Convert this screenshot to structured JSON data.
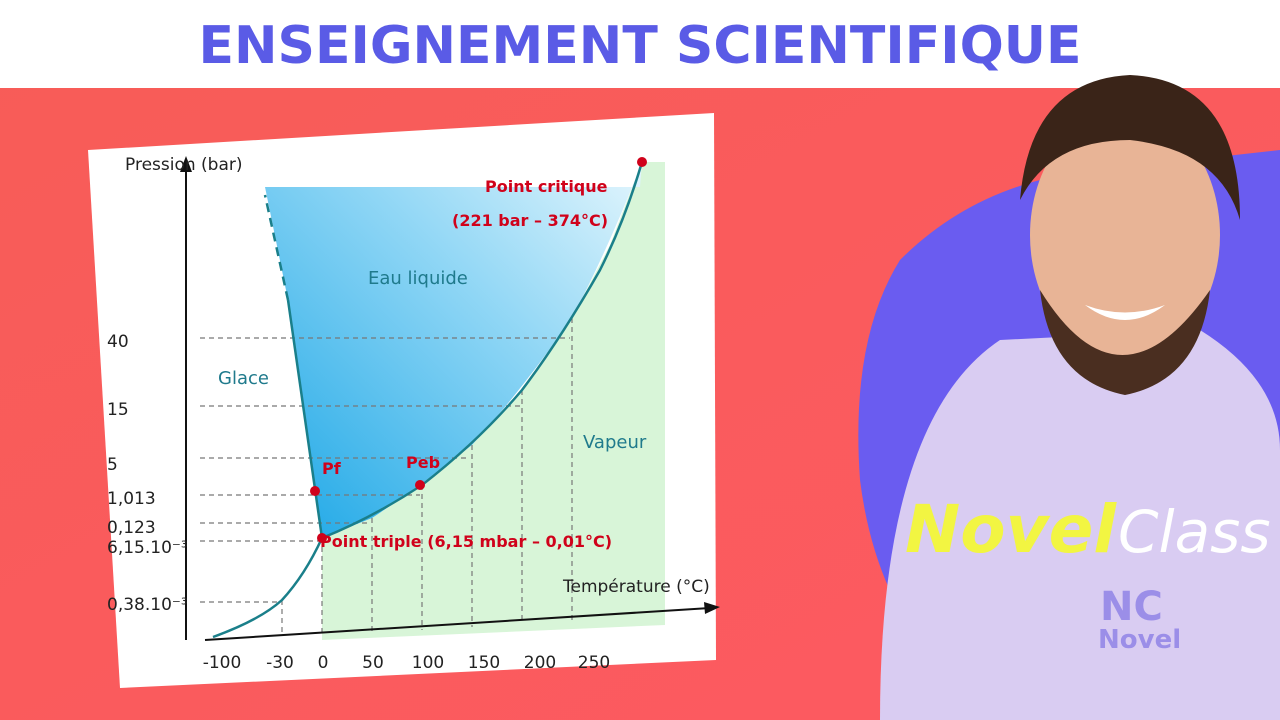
{
  "header": {
    "title": "ENSEIGNEMENT SCIENTIFIQUE"
  },
  "diagram": {
    "y_axis_label": "Pression (bar)",
    "x_axis_label": "Température (°C)",
    "y_ticks": [
      "40",
      "15",
      "5",
      "1,013",
      "0,123",
      "6,15.10⁻³",
      "0,38.10⁻³"
    ],
    "x_ticks": [
      "-100",
      "-30",
      "0",
      "50",
      "100",
      "150",
      "200",
      "250"
    ],
    "regions": {
      "solid": "Glace",
      "liquid": "Eau liquide",
      "gas": "Vapeur"
    },
    "points": {
      "fusion": "Pf",
      "boiling": "Peb",
      "triple": "Point triple (6,15 mbar – 0,01°C)",
      "critical": "Point critique",
      "critical_values": "(221 bar – 374°C)"
    }
  },
  "brand": {
    "word1": "Novel",
    "word2": "Class",
    "logo": "NC",
    "logo_text": "Novel"
  }
}
